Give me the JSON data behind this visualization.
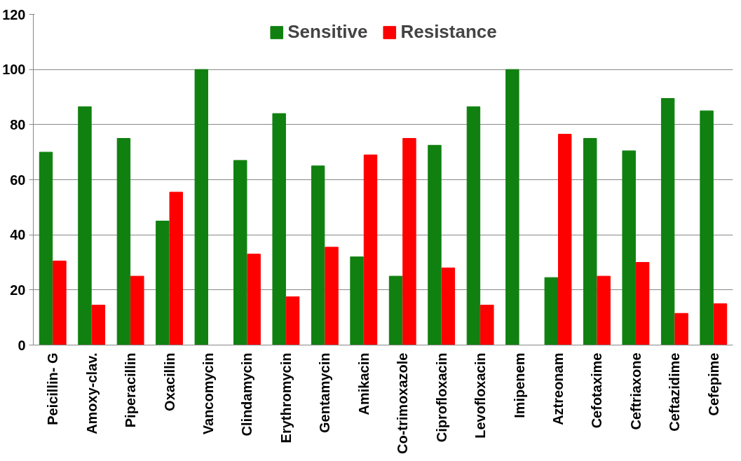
{
  "chart_data": {
    "type": "bar",
    "categories": [
      "Peicillin- G",
      "Amoxy-clav.",
      "Piperacillin",
      "Oxacillin",
      "Vancomycin",
      "Clindamycin",
      "Erythromycin",
      "Gentamycin",
      "Amikacin",
      "Co-trimoxazole",
      "Ciprofloxacin",
      "Levofloxacin",
      "Imipenem",
      "Aztreonam",
      "Cefotaxime",
      "Ceftriaxone",
      "Ceftazidime",
      "Cefepime"
    ],
    "series": [
      {
        "name": "Sensitive",
        "color": "#108010",
        "values": [
          70,
          86.5,
          75,
          45,
          100,
          67,
          84,
          65,
          32,
          25,
          72.5,
          86.5,
          100,
          24.5,
          75,
          70.5,
          89.5,
          85
        ]
      },
      {
        "name": "Resistance",
        "color": "#ff0000",
        "values": [
          30.5,
          14.5,
          25,
          55.5,
          0,
          33,
          17.5,
          35.5,
          69,
          75,
          28,
          14.5,
          0,
          76.5,
          25,
          30,
          11.5,
          15
        ]
      }
    ],
    "ylim": [
      0,
      120
    ],
    "yticks": [
      0,
      20,
      40,
      60,
      80,
      100,
      120
    ],
    "grid": "y",
    "legend": "top"
  }
}
